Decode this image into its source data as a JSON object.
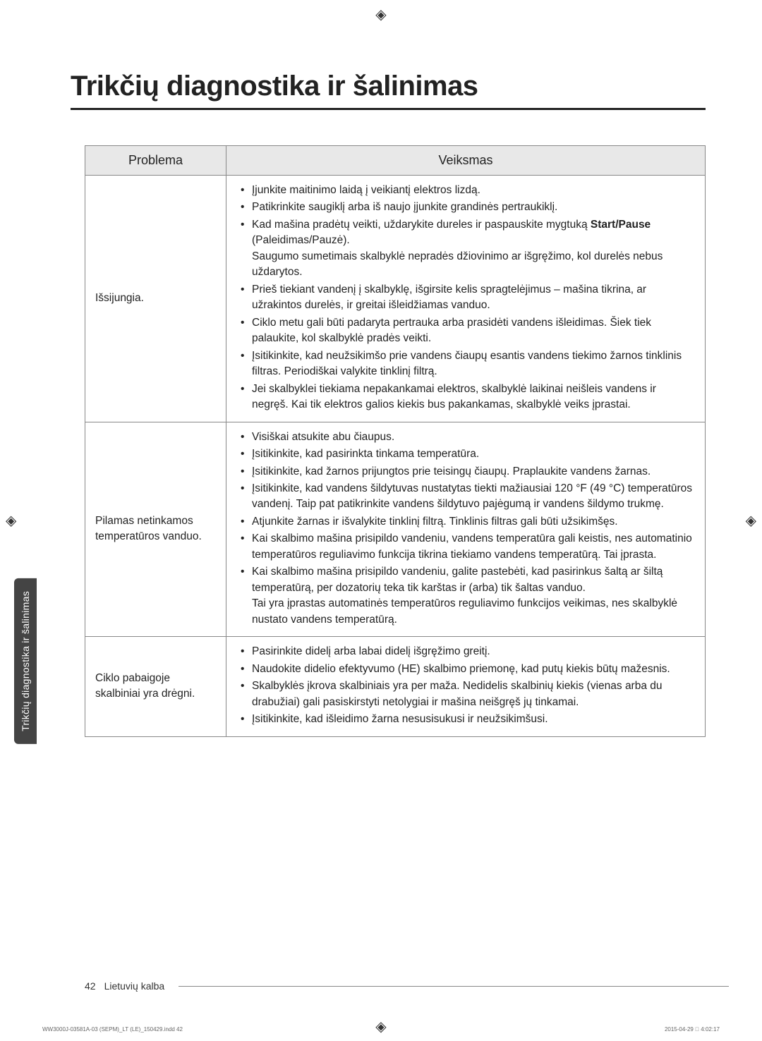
{
  "page": {
    "title": "Trikčių diagnostika ir šalinimas",
    "side_tab": "Trikčių diagnostika ir šalinimas",
    "page_number": "42",
    "language_label": "Lietuvių kalba",
    "print_footer_left": "WW3000J-03581A-03 (SEPM)_LT (LE)_150429.indd   42",
    "print_footer_right": "2015-04-29   􀀀 4:02:17"
  },
  "table": {
    "headers": {
      "col1": "Problema",
      "col2": "Veiksmas"
    },
    "rows": [
      {
        "problem": "Išsijungia.",
        "actions": [
          "Įjunkite maitinimo laidą į veikiantį elektros lizdą.",
          "Patikrinkite saugiklį arba iš naujo įjunkite grandinės pertraukiklį.",
          "Kad mašina pradėtų veikti, uždarykite dureles ir paspauskite mygtuką <b>Start/Pause</b> (Paleidimas/Pauzė).<br>Saugumo sumetimais skalbyklė nepradės džiovinimo ar išgręžimo, kol durelės nebus uždarytos.",
          "Prieš tiekiant vandenį į skalbyklę, išgirsite kelis spragtelėjimus – mašina tikrina, ar užrakintos durelės, ir greitai išleidžiamas vanduo.",
          "Ciklo metu gali būti padaryta pertrauka arba prasidėti vandens išleidimas. Šiek tiek palaukite, kol skalbyklė pradės veikti.",
          "Įsitikinkite, kad neužsikimšo prie vandens čiaupų esantis vandens tiekimo žarnos tinklinis filtras. Periodiškai valykite tinklinį filtrą.",
          "Jei skalbyklei tiekiama nepakankamai elektros, skalbyklė laikinai neišleis vandens ir negręš. Kai tik elektros galios kiekis bus pakankamas, skalbyklė veiks įprastai."
        ]
      },
      {
        "problem": "Pilamas netinkamos temperatūros vanduo.",
        "actions": [
          "Visiškai atsukite abu čiaupus.",
          "Įsitikinkite, kad pasirinkta tinkama temperatūra.",
          "Įsitikinkite, kad žarnos prijungtos prie teisingų čiaupų. Praplaukite vandens žarnas.",
          "Įsitikinkite, kad vandens šildytuvas nustatytas tiekti mažiausiai 120 °F (49 °C) temperatūros vandenį. Taip pat patikrinkite vandens šildytuvo pajėgumą ir vandens šildymo trukmę.",
          "Atjunkite žarnas ir išvalykite tinklinį filtrą. Tinklinis filtras gali būti užsikimšęs.",
          "Kai skalbimo mašina prisipildo vandeniu, vandens temperatūra gali keistis, nes automatinio temperatūros reguliavimo funkcija tikrina tiekiamo vandens temperatūrą. Tai įprasta.",
          "Kai skalbimo mašina prisipildo vandeniu, galite pastebėti, kad pasirinkus šaltą ar šiltą temperatūrą, per dozatorių teka tik karštas ir (arba) tik šaltas vanduo.<br>Tai yra įprastas automatinės temperatūros reguliavimo funkcijos veikimas, nes skalbyklė nustato vandens temperatūrą."
        ]
      },
      {
        "problem": "Ciklo pabaigoje skalbiniai yra drėgni.",
        "actions": [
          "Pasirinkite didelį arba labai didelį išgręžimo greitį.",
          "Naudokite didelio efektyvumo (HE) skalbimo priemonę, kad putų kiekis būtų mažesnis.",
          "Skalbyklės įkrova skalbiniais yra per maža. Nedidelis skalbinių kiekis (vienas arba du drabužiai) gali pasiskirstyti netolygiai ir mašina neišgręš jų tinkamai.",
          "Įsitikinkite, kad išleidimo žarna nesusisukusi ir neužsikimšusi."
        ]
      }
    ]
  }
}
